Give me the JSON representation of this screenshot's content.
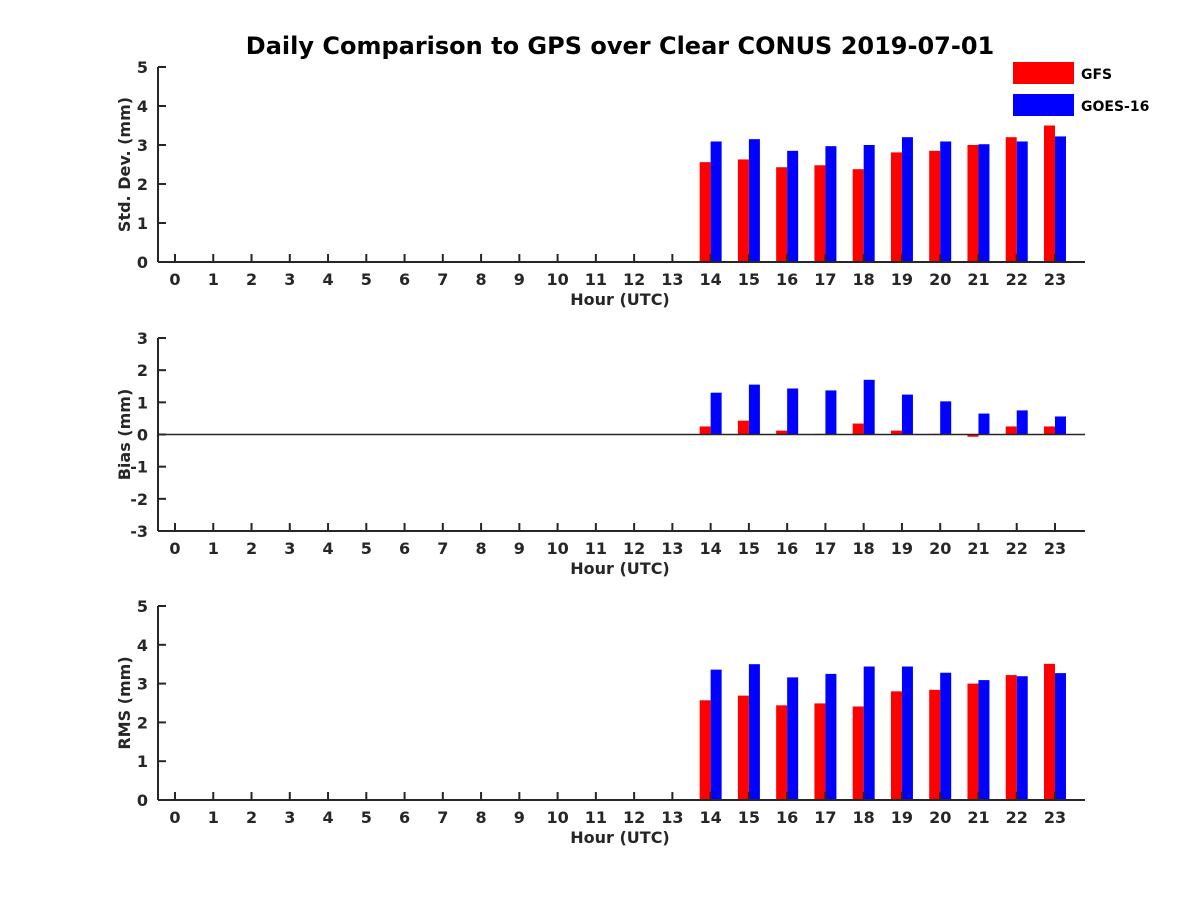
{
  "chart_data": {
    "title": "Daily Comparison to GPS over Clear CONUS 2019-07-01",
    "colors": {
      "GFS": "#ff0000",
      "GOES-16": "#0000ff"
    },
    "legend": {
      "placement": "top-right",
      "entries": [
        "GFS",
        "GOES-16"
      ]
    },
    "hours": [
      "0",
      "1",
      "2",
      "3",
      "4",
      "5",
      "6",
      "7",
      "8",
      "9",
      "10",
      "11",
      "12",
      "13",
      "14",
      "15",
      "16",
      "17",
      "18",
      "19",
      "20",
      "21",
      "22",
      "23"
    ],
    "panels": [
      {
        "type": "bar",
        "ylabel": "Std. Dev. (mm)",
        "xlabel": "Hour (UTC)",
        "ylim": [
          0,
          5
        ],
        "yticks": [
          "0",
          "1",
          "2",
          "3",
          "4",
          "5"
        ],
        "series": [
          {
            "name": "GFS",
            "values": [
              null,
              null,
              null,
              null,
              null,
              null,
              null,
              null,
              null,
              null,
              null,
              null,
              null,
              null,
              2.56,
              2.63,
              2.43,
              2.48,
              2.38,
              2.81,
              2.85,
              3.0,
              3.2,
              3.5
            ]
          },
          {
            "name": "GOES-16",
            "values": [
              null,
              null,
              null,
              null,
              null,
              null,
              null,
              null,
              null,
              null,
              null,
              null,
              null,
              null,
              3.09,
              3.15,
              2.85,
              2.97,
              3.0,
              3.2,
              3.09,
              3.02,
              3.09,
              3.22
            ]
          }
        ]
      },
      {
        "type": "bar",
        "ylabel": "Bias (mm)",
        "xlabel": "Hour (UTC)",
        "ylim": [
          -3,
          3
        ],
        "yticks": [
          "-3",
          "-2",
          "-1",
          "0",
          "1",
          "2",
          "3"
        ],
        "series": [
          {
            "name": "GFS",
            "values": [
              null,
              null,
              null,
              null,
              null,
              null,
              null,
              null,
              null,
              null,
              null,
              null,
              null,
              null,
              0.25,
              0.43,
              0.12,
              0.02,
              0.34,
              0.12,
              0.02,
              -0.07,
              0.25,
              0.25
            ]
          },
          {
            "name": "GOES-16",
            "values": [
              null,
              null,
              null,
              null,
              null,
              null,
              null,
              null,
              null,
              null,
              null,
              null,
              null,
              null,
              1.3,
              1.55,
              1.43,
              1.37,
              1.7,
              1.24,
              1.03,
              0.65,
              0.75,
              0.56
            ]
          }
        ]
      },
      {
        "type": "bar",
        "ylabel": "RMS (mm)",
        "xlabel": "Hour (UTC)",
        "ylim": [
          0,
          5
        ],
        "yticks": [
          "0",
          "1",
          "2",
          "3",
          "4",
          "5"
        ],
        "series": [
          {
            "name": "GFS",
            "values": [
              null,
              null,
              null,
              null,
              null,
              null,
              null,
              null,
              null,
              null,
              null,
              null,
              null,
              null,
              2.57,
              2.69,
              2.44,
              2.49,
              2.41,
              2.8,
              2.84,
              3.0,
              3.22,
              3.51
            ]
          },
          {
            "name": "GOES-16",
            "values": [
              null,
              null,
              null,
              null,
              null,
              null,
              null,
              null,
              null,
              null,
              null,
              null,
              null,
              null,
              3.36,
              3.5,
              3.16,
              3.25,
              3.44,
              3.44,
              3.28,
              3.09,
              3.19,
              3.27
            ]
          }
        ]
      }
    ]
  }
}
